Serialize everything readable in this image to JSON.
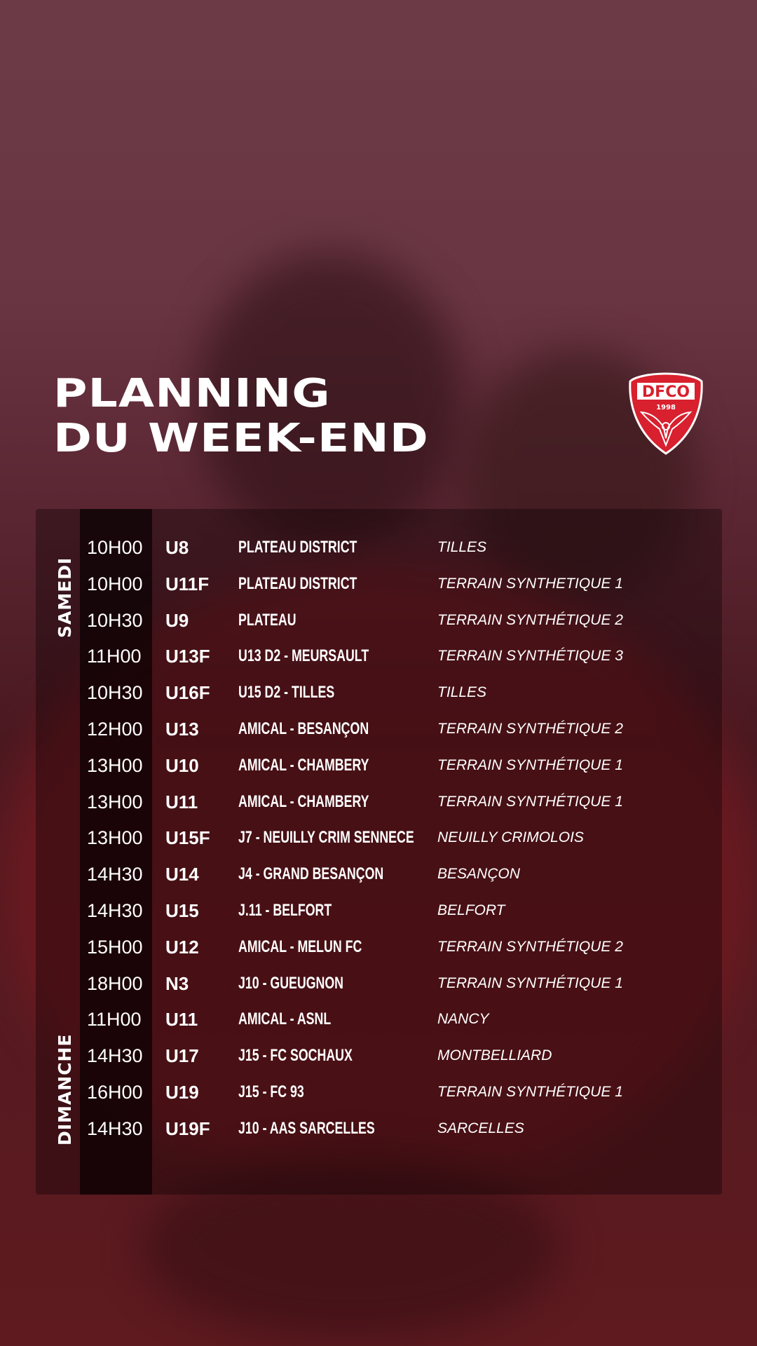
{
  "header": {
    "title_line1": "PLANNING",
    "title_line2": "DU WEEK-END"
  },
  "logo": {
    "text": "DFCO",
    "year": "1998",
    "color": "#d8202e"
  },
  "days": {
    "saturday": "SAMEDI",
    "sunday": "DIMANCHE"
  },
  "schedule": [
    {
      "time": "10H00",
      "category": "U8",
      "match": "PLATEAU DISTRICT",
      "venue": "TILLES"
    },
    {
      "time": "10H00",
      "category": "U11F",
      "match": "PLATEAU DISTRICT",
      "venue": "TERRAIN SYNTHETIQUE 1"
    },
    {
      "time": "10H30",
      "category": "U9",
      "match": "PLATEAU",
      "venue": "TERRAIN SYNTHÉTIQUE 2"
    },
    {
      "time": "11H00",
      "category": "U13F",
      "match": "U13 D2 - MEURSAULT",
      "venue": "TERRAIN SYNTHÉTIQUE 3"
    },
    {
      "time": "10H30",
      "category": "U16F",
      "match": "U15 D2 - TILLES",
      "venue": "TILLES"
    },
    {
      "time": "12H00",
      "category": "U13",
      "match": "AMICAL - BESANÇON",
      "venue": "TERRAIN SYNTHÉTIQUE 2"
    },
    {
      "time": "13H00",
      "category": "U10",
      "match": "AMICAL - CHAMBERY",
      "venue": "TERRAIN SYNTHÉTIQUE 1"
    },
    {
      "time": "13H00",
      "category": "U11",
      "match": "AMICAL - CHAMBERY",
      "venue": "TERRAIN SYNTHÉTIQUE 1"
    },
    {
      "time": "13H00",
      "category": "U15F",
      "match": "J7 - NEUILLY CRIM SENNECE",
      "venue": "NEUILLY CRIMOLOIS"
    },
    {
      "time": "14H30",
      "category": "U14",
      "match": "J4 - GRAND BESANÇON",
      "venue": "BESANÇON"
    },
    {
      "time": "14H30",
      "category": "U15",
      "match": "J.11 - BELFORT",
      "venue": "BELFORT"
    },
    {
      "time": "15H00",
      "category": "U12",
      "match": "AMICAL - MELUN FC",
      "venue": "TERRAIN SYNTHÉTIQUE 2"
    },
    {
      "time": "18H00",
      "category": "N3",
      "match": "J10 - GUEUGNON",
      "venue": "TERRAIN SYNTHÉTIQUE 1"
    },
    {
      "time": "11H00",
      "category": "U11",
      "match": "AMICAL - ASNL",
      "venue": "NANCY"
    },
    {
      "time": "14H30",
      "category": "U17",
      "match": "J15 - FC SOCHAUX",
      "venue": "MONTBELLIARD"
    },
    {
      "time": "16H00",
      "category": "U19",
      "match": "J15 - FC 93",
      "venue": "TERRAIN SYNTHÉTIQUE 1"
    },
    {
      "time": "14H30",
      "category": "U19F",
      "match": "J10 - AAS SARCELLES",
      "venue": "SARCELLES"
    }
  ]
}
